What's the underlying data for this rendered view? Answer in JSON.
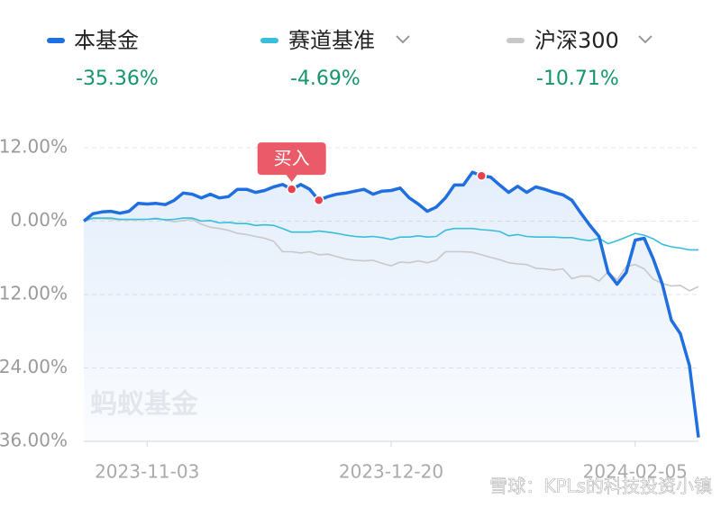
{
  "chart_data": {
    "type": "line",
    "categories": [
      null,
      null,
      null,
      null,
      null,
      null,
      null,
      "2023-11-03",
      null,
      null,
      null,
      null,
      null,
      null,
      null,
      null,
      null,
      null,
      null,
      null,
      null,
      null,
      null,
      null,
      null,
      null,
      null,
      null,
      null,
      null,
      null,
      null,
      null,
      null,
      "2023-12-20",
      null,
      null,
      null,
      null,
      null,
      null,
      null,
      null,
      null,
      null,
      null,
      null,
      null,
      null,
      null,
      null,
      null,
      null,
      null,
      null,
      null,
      null,
      null,
      null,
      null,
      null,
      "2024-02-05",
      null,
      null,
      null,
      null,
      null,
      null,
      null
    ],
    "series": [
      {
        "name": "本基金",
        "color": "#1f6fe0",
        "last_label": "-35.36%",
        "values": [
          0,
          1.2,
          1.5,
          1.6,
          1.3,
          1.6,
          2.9,
          2.8,
          2.9,
          2.7,
          3.4,
          4.6,
          4.4,
          3.8,
          4.4,
          3.8,
          4.0,
          5.2,
          5.2,
          4.7,
          5.0,
          5.6,
          6.0,
          5.2,
          6.0,
          5.2,
          3.4,
          4.0,
          4.4,
          4.6,
          4.9,
          5.2,
          4.4,
          4.9,
          5.0,
          5.4,
          3.8,
          2.8,
          1.6,
          2.3,
          3.8,
          5.9,
          5.9,
          8.0,
          7.4,
          7.2,
          5.9,
          4.7,
          5.7,
          4.7,
          5.6,
          5.2,
          4.7,
          4.3,
          3.4,
          1.3,
          -0.7,
          -2.5,
          -8.4,
          -10.3,
          -8.4,
          -3.1,
          -2.8,
          -6.2,
          -10.3,
          -16.2,
          -18.4,
          -23.6,
          -35.36
        ]
      },
      {
        "name": "赛道基准",
        "color": "#35bfdc",
        "last_label": "-4.69%",
        "values": [
          0,
          0.5,
          0.5,
          0.5,
          0.3,
          0.3,
          0.3,
          0.3,
          0.4,
          0.2,
          0.3,
          0.5,
          0.5,
          0,
          0.1,
          -0.3,
          -0.2,
          -0.4,
          -0.4,
          -0.7,
          -0.6,
          -0.7,
          -1.2,
          -1.8,
          -1.8,
          -1.8,
          -1.6,
          -1.8,
          -2.0,
          -2.3,
          -2.5,
          -2.6,
          -2.5,
          -2.7,
          -3.0,
          -2.6,
          -2.6,
          -2.4,
          -2.6,
          -2.5,
          -1.5,
          -1.2,
          -1.2,
          -1.2,
          -1.4,
          -1.5,
          -1.7,
          -2.4,
          -2.2,
          -2.5,
          -2.6,
          -2.6,
          -2.6,
          -2.7,
          -2.7,
          -3.0,
          -3.2,
          -2.8,
          -3.7,
          -3.2,
          -2.6,
          -2.0,
          -2.3,
          -2.9,
          -3.8,
          -4.2,
          -4.4,
          -4.7,
          -4.69
        ]
      },
      {
        "name": "沪深300",
        "color": "#c8c8c8",
        "last_label": "-10.71%",
        "values": [
          0,
          0.4,
          0.4,
          0.3,
          0.2,
          0.2,
          0.2,
          0.3,
          0.5,
          0.2,
          -0.1,
          0.1,
          0.3,
          -0.5,
          -1.0,
          -1.2,
          -1.5,
          -2.0,
          -2.2,
          -2.5,
          -2.8,
          -3.3,
          -5.0,
          -5.0,
          -5.2,
          -5.0,
          -5.5,
          -5.4,
          -5.8,
          -6.2,
          -6.4,
          -6.5,
          -6.4,
          -6.9,
          -7.3,
          -6.7,
          -6.8,
          -6.5,
          -6.8,
          -6.4,
          -5.0,
          -5.0,
          -5.0,
          -5.1,
          -5.5,
          -5.9,
          -6.3,
          -6.8,
          -7.0,
          -7.1,
          -7.7,
          -7.8,
          -8.0,
          -7.8,
          -9.4,
          -9.0,
          -9.0,
          -9.8,
          -8.3,
          -9.6,
          -7.4,
          -7.1,
          -7.8,
          -9.5,
          -10.2,
          -10.6,
          -10.5,
          -11.4,
          -10.71
        ]
      }
    ],
    "ylim": [
      -36,
      12
    ],
    "yticks": [
      {
        "value": 12,
        "label": "12.00%"
      },
      {
        "value": 0,
        "label": "0.00%"
      },
      {
        "value": -12,
        "label": "-12.00%"
      },
      {
        "value": -24,
        "label": "-24.00%"
      },
      {
        "value": -36,
        "label": "-36.00%"
      }
    ],
    "grid": true,
    "annotation": {
      "text": "买入",
      "index": 23
    },
    "markers": [
      23,
      26,
      44
    ]
  },
  "watermarks": [
    "蚂蚁基金",
    "雪球：KPLs的科技投资小镇"
  ]
}
